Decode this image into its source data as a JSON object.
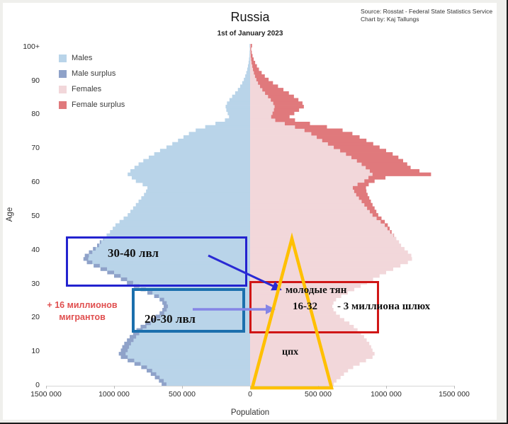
{
  "header": {
    "title": "Russia",
    "subtitle": "1st of January 2023",
    "source_line1": "Source: Rosstat - Federal State Statistics Service",
    "source_line2": "Chart by: Kaj Tallungs"
  },
  "legend": {
    "items": [
      {
        "label": "Males",
        "color": "#b9d4e9"
      },
      {
        "label": "Male surplus",
        "color": "#8fa2c9"
      },
      {
        "label": "Females",
        "color": "#f2d7da"
      },
      {
        "label": "Female surplus",
        "color": "#e0797c"
      }
    ]
  },
  "colors": {
    "males": "#b9d4e9",
    "male_surplus": "#8fa2c9",
    "females": "#f2d7da",
    "female_surplus": "#e0797c",
    "box_blue": "#2323cf",
    "box_teal": "#1b6fad",
    "box_red": "#d01616",
    "arrow_blue": "#2a2ad4",
    "arrow_purple": "#8585e6",
    "triangle_yellow": "#ffc000",
    "migrants_text": "#e04f4f"
  },
  "annotations": {
    "box_30_40_label": "30-40 лвл",
    "box_20_30_label": "20-30 лвл",
    "young_title": "молодые тян",
    "young_range": "16-32",
    "young_note": "- 3 миллиона шлюх",
    "triangle_label": "цпх",
    "migrants_line1": "+ 16 миллионов",
    "migrants_line2": "мигрантов"
  },
  "chart_data": {
    "type": "bar",
    "variant": "population-pyramid",
    "title": "Russia",
    "subtitle": "1st of January 2023",
    "xlabel": "Population",
    "ylabel": "Age",
    "x_ticks": [
      "1500 000",
      "1000 000",
      "500 000",
      "0",
      "500 000",
      "1000 000",
      "1500 000"
    ],
    "x_tick_values": [
      -1500000,
      -1000000,
      -500000,
      0,
      500000,
      1000000,
      1500000
    ],
    "y_ticks": [
      "0",
      "10",
      "20",
      "30",
      "40",
      "50",
      "60",
      "70",
      "80",
      "90",
      "100+"
    ],
    "age_axis": "single years of age, 0 at bottom to 100+ at top",
    "unit_scale": 1000,
    "units": "estimated persons per single year of age, in thousands (multiply by unit_scale)",
    "surplus_rule": "Male surplus = males minus females where males exceed females; Female surplus = females minus males where females exceed males",
    "legend_position": "upper-left inside plot",
    "grid": false,
    "series": [
      {
        "name": "Males",
        "side": "left",
        "values": [
          650,
          670,
          700,
          730,
          760,
          800,
          850,
          900,
          950,
          965,
          950,
          940,
          925,
          905,
          885,
          860,
          835,
          805,
          770,
          730,
          695,
          665,
          645,
          635,
          645,
          665,
          705,
          755,
          805,
          855,
          905,
          950,
          1000,
          1050,
          1100,
          1150,
          1200,
          1225,
          1215,
          1185,
          1155,
          1125,
          1105,
          1080,
          1055,
          1030,
          1010,
          990,
          960,
          930,
          900,
          880,
          860,
          840,
          820,
          800,
          780,
          765,
          755,
          790,
          840,
          870,
          900,
          880,
          850,
          820,
          785,
          745,
          705,
          662,
          615,
          572,
          530,
          490,
          450,
          400,
          330,
          255,
          185,
          155,
          165,
          175,
          180,
          170,
          152,
          132,
          110,
          90,
          73,
          58,
          46,
          36,
          28,
          21,
          16,
          11,
          8,
          5,
          4,
          2,
          4
        ]
      },
      {
        "name": "Females",
        "side": "right",
        "values": [
          615,
          635,
          665,
          690,
          720,
          758,
          805,
          852,
          900,
          915,
          900,
          890,
          876,
          857,
          838,
          815,
          790,
          762,
          730,
          692,
          660,
          632,
          613,
          604,
          613,
          632,
          670,
          718,
          766,
          813,
          860,
          904,
          952,
          1000,
          1052,
          1105,
          1160,
          1190,
          1185,
          1160,
          1135,
          1110,
          1095,
          1075,
          1058,
          1040,
          1026,
          1012,
          990,
          966,
          942,
          928,
          915,
          900,
          888,
          876,
          864,
          855,
          852,
          872,
          915,
          995,
          1330,
          1245,
          1180,
          1155,
          1125,
          1090,
          1048,
          1000,
          952,
          905,
          855,
          805,
          752,
          680,
          565,
          440,
          330,
          290,
          325,
          360,
          395,
          385,
          355,
          322,
          285,
          245,
          205,
          168,
          136,
          108,
          85,
          65,
          50,
          37,
          26,
          18,
          12,
          8,
          14
        ]
      }
    ]
  }
}
